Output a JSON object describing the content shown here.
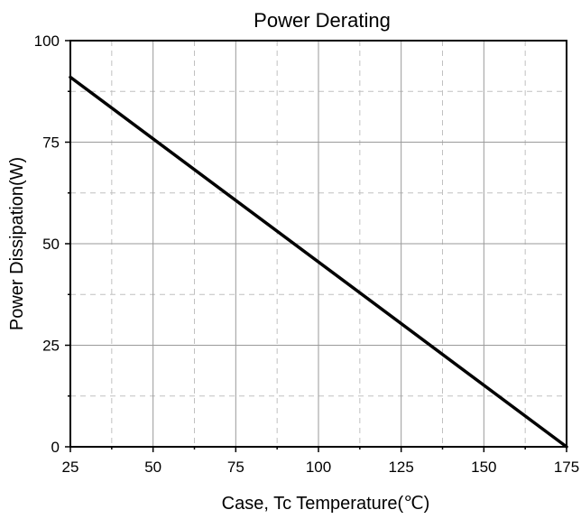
{
  "chart_data": {
    "type": "line",
    "title": "Power Derating",
    "xlabel": "Case, Tc Temperature(℃)",
    "ylabel": "Power Dissipation(W)",
    "xlim": [
      25,
      175
    ],
    "ylim": [
      0,
      100
    ],
    "x_ticks": [
      25,
      50,
      75,
      100,
      125,
      150,
      175
    ],
    "y_ticks": [
      0,
      25,
      50,
      75,
      100
    ],
    "x_tick_labels": [
      "25",
      "50",
      "75",
      "100",
      "125",
      "150",
      "175"
    ],
    "y_tick_labels": [
      "0",
      "25",
      "50",
      "75",
      "100"
    ],
    "x_minor_step": 12.5,
    "y_minor_step": 12.5,
    "grid": true,
    "legend": false,
    "series": [
      {
        "x": [
          25,
          175
        ],
        "y": [
          91,
          0
        ],
        "color": "#000000"
      }
    ]
  }
}
